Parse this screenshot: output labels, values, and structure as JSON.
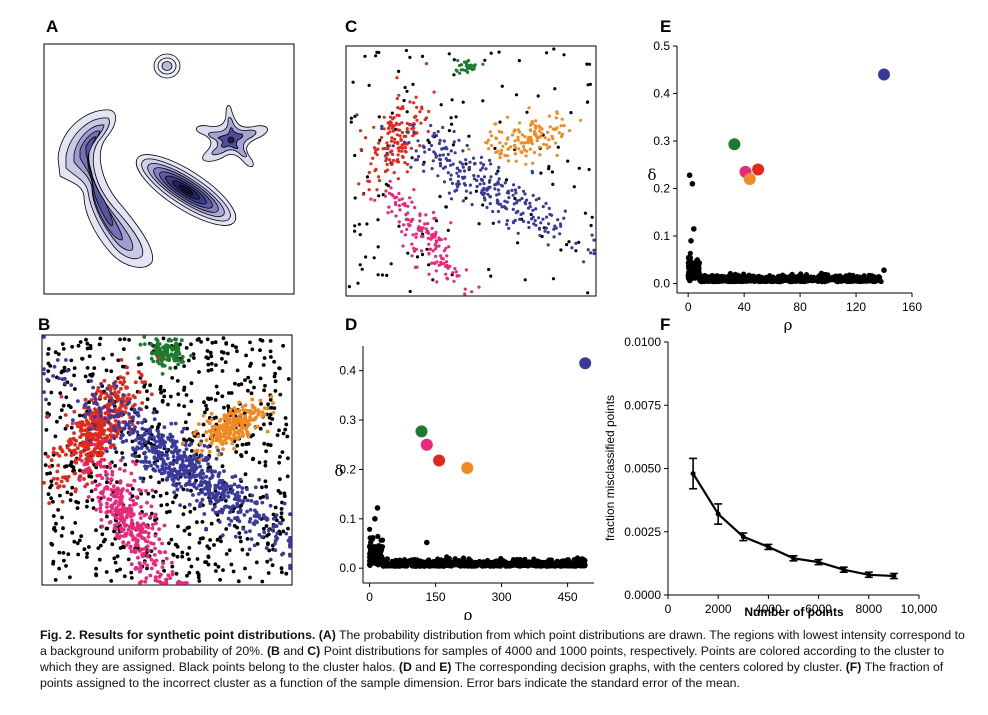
{
  "figure": {
    "panel_labels": {
      "A": "A",
      "B": "B",
      "C": "C",
      "D": "D",
      "E": "E",
      "F": "F"
    },
    "colors": {
      "blue": "#3a3a9a",
      "green": "#1f7a2e",
      "red": "#e02a1e",
      "pink": "#e8287a",
      "orange": "#f08a22",
      "black": "#000000"
    }
  },
  "caption": {
    "title": "Fig. 2. Results for synthetic point distributions.",
    "parts": [
      {
        "bold": "(A)",
        "text": " The probability distribution from which point distributions are drawn. The regions with lowest intensity correspond to a background uniform probability of 20%. "
      },
      {
        "bold": "(B",
        "text": " and "
      },
      {
        "bold": "C)",
        "text": " Point distributions for samples of 4000 and 1000 points, respectively. Points are colored according to the cluster to which they are assigned. Black points belong to the cluster halos. "
      },
      {
        "bold": "(D",
        "text": " and "
      },
      {
        "bold": "E)",
        "text": " The corresponding decision graphs, with the centers colored by cluster. "
      },
      {
        "bold": "(F)",
        "text": " The fraction of points assigned to the incorrect cluster as a function of the sample dimension. Error bars indicate the standard error of the mean."
      }
    ]
  },
  "chart_data": [
    {
      "panel": "D",
      "type": "scatter",
      "title": "",
      "xlabel": "ρ",
      "ylabel": "δ",
      "xlim": [
        -15,
        510
      ],
      "ylim": [
        -0.03,
        0.45
      ],
      "xticks": [
        "0",
        "150",
        "300",
        "450"
      ],
      "yticks": [
        "0.0",
        "0.1",
        "0.2",
        "0.3",
        "0.4"
      ],
      "centers": [
        {
          "cluster": "blue",
          "x": 490,
          "y": 0.415
        },
        {
          "cluster": "green",
          "x": 118,
          "y": 0.277
        },
        {
          "cluster": "pink",
          "x": 130,
          "y": 0.25
        },
        {
          "cluster": "red",
          "x": 158,
          "y": 0.218
        },
        {
          "cluster": "orange",
          "x": 222,
          "y": 0.203
        }
      ],
      "outliers": [
        [
          18,
          0.122
        ],
        [
          12,
          0.1
        ],
        [
          130,
          0.052
        ],
        [
          485,
          0.018
        ]
      ]
    },
    {
      "panel": "E",
      "type": "scatter",
      "title": "",
      "xlabel": "ρ",
      "ylabel": "δ",
      "xlim": [
        -8,
        160
      ],
      "ylim": [
        -0.02,
        0.5
      ],
      "xticks": [
        "0",
        "40",
        "80",
        "120",
        "160"
      ],
      "yticks": [
        "0.0",
        "0.1",
        "0.2",
        "0.3",
        "0.4",
        "0.5"
      ],
      "centers": [
        {
          "cluster": "blue",
          "x": 140,
          "y": 0.44
        },
        {
          "cluster": "green",
          "x": 33,
          "y": 0.293
        },
        {
          "cluster": "pink",
          "x": 41,
          "y": 0.235
        },
        {
          "cluster": "red",
          "x": 50,
          "y": 0.24
        },
        {
          "cluster": "orange",
          "x": 44,
          "y": 0.22
        }
      ],
      "outliers": [
        [
          1,
          0.228
        ],
        [
          3,
          0.21
        ],
        [
          4,
          0.115
        ],
        [
          2,
          0.09
        ],
        [
          140,
          0.028
        ]
      ]
    },
    {
      "panel": "F",
      "type": "line",
      "title": "",
      "xlabel": "Number of points",
      "ylabel": "fraction misclassified points",
      "xlim": [
        0,
        10000
      ],
      "ylim": [
        0,
        0.01
      ],
      "xticks": [
        "0",
        "2000",
        "4000",
        "6000",
        "8000",
        "10,000"
      ],
      "yticks": [
        "0.0000",
        "0.0025",
        "0.0050",
        "0.0075",
        "0.0100"
      ],
      "x": [
        1000,
        2000,
        3000,
        4000,
        5000,
        6000,
        7000,
        8000,
        9000
      ],
      "values": [
        0.0048,
        0.0032,
        0.0023,
        0.0019,
        0.00145,
        0.0013,
        0.001,
        0.0008,
        0.00075
      ],
      "errors": [
        0.0006,
        0.0004,
        0.00015,
        0.0001,
        0.0001,
        0.0001,
        0.0001,
        0.0001,
        0.0001
      ]
    }
  ]
}
